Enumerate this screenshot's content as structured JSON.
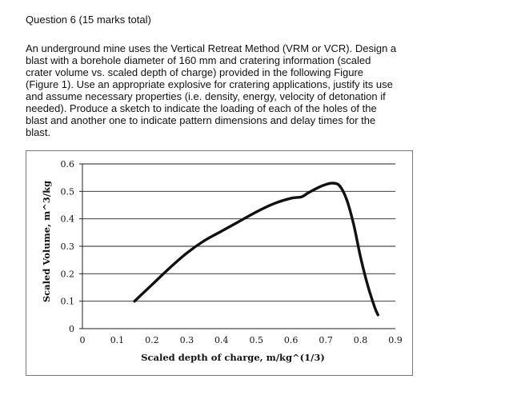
{
  "question": {
    "title": "Question 6 (15 marks total)",
    "body_lines": [
      "An underground mine uses the Vertical Retreat Method (VRM or VCR). Design a",
      "blast with a borehole diameter of 160 mm and cratering information (scaled",
      "crater volume vs. scaled depth of charge) provided in the following Figure",
      "(Figure 1). Use an appropriate explosive for cratering applications, justify its use",
      "and assume necessary properties (i.e. density, energy, velocity of detonation if",
      "needed). Produce a sketch to indicate the loading of each of the holes of the",
      "blast and another one to indicate pattern dimensions and delay times for the",
      "blast."
    ]
  },
  "chart_data": {
    "type": "line",
    "title": "",
    "xlabel": "Scaled depth of charge, m/kg^(1/3)",
    "ylabel": "Scaled Volume, m^3/kg",
    "xlim": [
      0,
      0.9
    ],
    "ylim": [
      0,
      0.6
    ],
    "x_ticks": [
      "0",
      "0.1",
      "0.2",
      "0.3",
      "0.4",
      "0.5",
      "0.6",
      "0.7",
      "0.8",
      "0.9"
    ],
    "y_ticks": [
      "0",
      "0.1",
      "0.2",
      "0.3",
      "0.4",
      "0.5",
      "0.6"
    ],
    "grid": "horizontal",
    "legend": "none",
    "line_color": "#111111",
    "series": [
      {
        "x": [
          0.15,
          0.2,
          0.25,
          0.3,
          0.35,
          0.4,
          0.45,
          0.5,
          0.55,
          0.6,
          0.63,
          0.65,
          0.68,
          0.7,
          0.72,
          0.74,
          0.76,
          0.78,
          0.8,
          0.82,
          0.84,
          0.85
        ],
        "y": [
          0.1,
          0.16,
          0.22,
          0.275,
          0.32,
          0.355,
          0.39,
          0.425,
          0.455,
          0.475,
          0.48,
          0.495,
          0.515,
          0.525,
          0.53,
          0.52,
          0.47,
          0.38,
          0.26,
          0.16,
          0.08,
          0.05
        ]
      }
    ]
  }
}
